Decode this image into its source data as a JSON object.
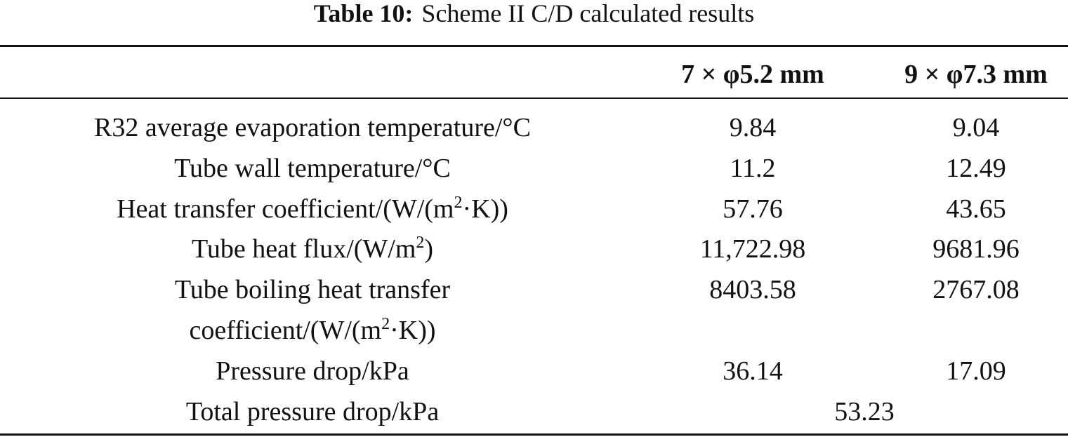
{
  "title": {
    "label": "Table 10:",
    "text": "Scheme II C/D calculated results"
  },
  "table": {
    "header": [
      "7 × φ5.2 mm",
      "9 × φ7.3 mm"
    ],
    "rows": [
      {
        "label": [
          [
            "R32 average evaporation temperature/°C"
          ]
        ],
        "values": [
          "9.84",
          "9.04"
        ]
      },
      {
        "label": [
          [
            "Tube wall temperature/°C"
          ]
        ],
        "values": [
          "11.2",
          "12.49"
        ]
      },
      {
        "label": [
          [
            "Heat transfer coefficient/(W/(m",
            "2",
            "·K))"
          ]
        ],
        "values": [
          "57.76",
          "43.65"
        ]
      },
      {
        "label": [
          [
            "Tube heat flux/(W/m",
            "2",
            ")"
          ]
        ],
        "values": [
          "11,722.98",
          "9681.96"
        ]
      },
      {
        "label": [
          [
            "Tube boiling heat transfer"
          ],
          [
            "coefficient/(W/(m",
            "2",
            "·K))"
          ]
        ],
        "values": [
          "8403.58",
          "2767.08"
        ]
      },
      {
        "label": [
          [
            "Pressure drop/kPa"
          ]
        ],
        "values": [
          "36.14",
          "17.09"
        ]
      }
    ],
    "total": {
      "label": "Total pressure drop/kPa",
      "value": "53.23"
    }
  }
}
